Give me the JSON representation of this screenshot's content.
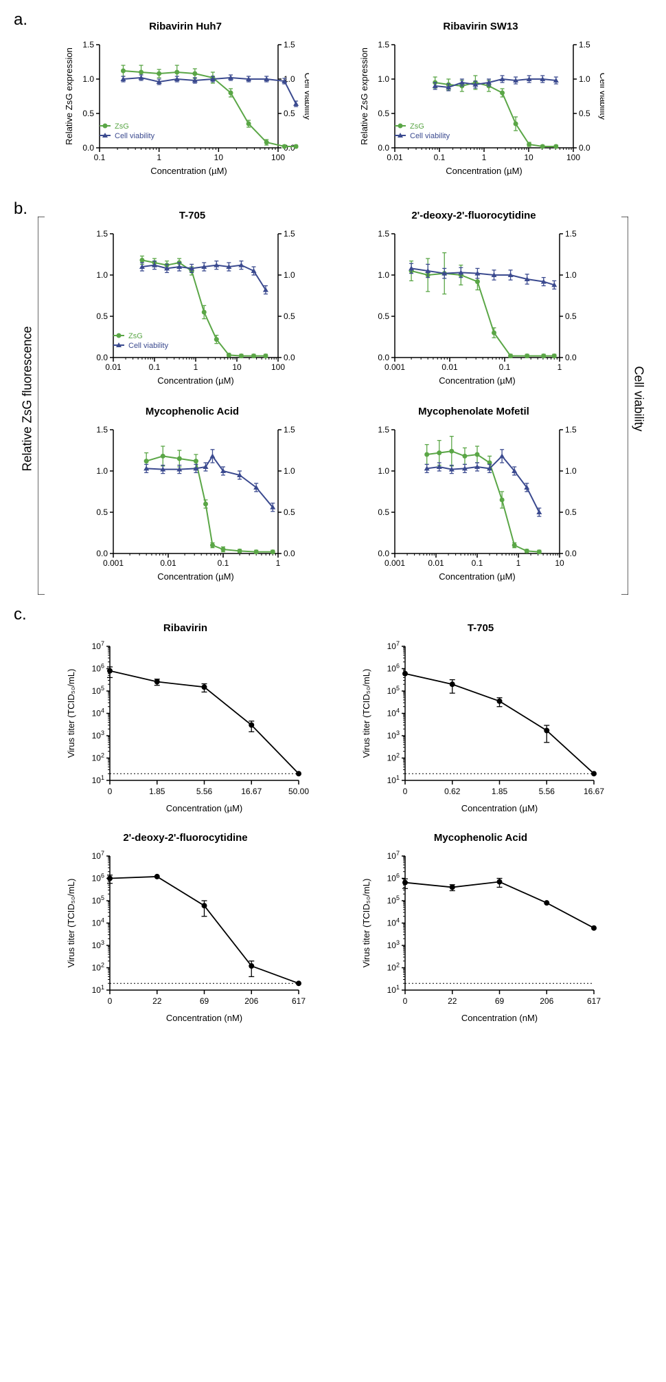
{
  "colors": {
    "zsg": "#5aa646",
    "viability": "#3b4a8f",
    "axis": "#000000",
    "bg": "#ffffff",
    "titer": "#000000",
    "dotted": "#000000"
  },
  "panelA": {
    "label": "a.",
    "charts": [
      {
        "title": "Ribavirin Huh7",
        "xlabel": "Concentration (µM)",
        "ylabel_left": "Relative ZsG expression",
        "ylabel_right": "Cell viability",
        "xlog": true,
        "x_ticks": [
          0.1,
          1,
          10,
          100
        ],
        "x_tick_labels": [
          "0.1",
          "1",
          "10",
          "100"
        ],
        "y_ticks": [
          0.0,
          0.5,
          1.0,
          1.5
        ],
        "show_legend": true,
        "legend": {
          "zsg": "ZsG",
          "viability": "Cell viability"
        },
        "zsg": {
          "x": [
            0.25,
            0.5,
            1,
            2,
            4,
            8,
            16,
            32,
            64,
            128,
            200
          ],
          "y": [
            1.12,
            1.1,
            1.08,
            1.1,
            1.08,
            1.02,
            0.8,
            0.35,
            0.08,
            0.02,
            0.02
          ],
          "err": [
            0.08,
            0.1,
            0.06,
            0.1,
            0.07,
            0.08,
            0.06,
            0.05,
            0.04,
            0.02,
            0.02
          ]
        },
        "viability": {
          "x": [
            0.25,
            0.5,
            1,
            2,
            4,
            8,
            16,
            32,
            64,
            128,
            200
          ],
          "y": [
            1.0,
            1.02,
            0.96,
            1.0,
            0.98,
            1.0,
            1.02,
            1.0,
            1.0,
            0.97,
            0.64
          ],
          "err": [
            0.04,
            0.04,
            0.04,
            0.04,
            0.04,
            0.04,
            0.04,
            0.04,
            0.04,
            0.04,
            0.04
          ]
        }
      },
      {
        "title": "Ribavirin SW13",
        "xlabel": "Concentration (µM)",
        "ylabel_left": "Relative ZsG expression",
        "ylabel_right": "Cell viability",
        "xlog": true,
        "x_ticks": [
          0.01,
          0.1,
          1,
          10,
          100
        ],
        "x_tick_labels": [
          "0.01",
          "0.1",
          "1",
          "10",
          "100"
        ],
        "y_ticks": [
          0.0,
          0.5,
          1.0,
          1.5
        ],
        "show_legend": true,
        "legend": {
          "zsg": "ZsG",
          "viability": "Cell viability"
        },
        "zsg": {
          "x": [
            0.08,
            0.16,
            0.32,
            0.64,
            1.28,
            2.56,
            5.12,
            10.24,
            20.48,
            40.96
          ],
          "y": [
            0.95,
            0.92,
            0.9,
            0.95,
            0.9,
            0.8,
            0.35,
            0.05,
            0.02,
            0.02
          ],
          "err": [
            0.08,
            0.08,
            0.08,
            0.1,
            0.08,
            0.06,
            0.1,
            0.03,
            0.02,
            0.02
          ]
        },
        "viability": {
          "x": [
            0.08,
            0.16,
            0.32,
            0.64,
            1.28,
            2.56,
            5.12,
            10.24,
            20.48,
            40.96
          ],
          "y": [
            0.9,
            0.88,
            0.95,
            0.92,
            0.95,
            1.0,
            0.98,
            1.0,
            1.0,
            0.98
          ],
          "err": [
            0.05,
            0.05,
            0.05,
            0.05,
            0.05,
            0.05,
            0.05,
            0.05,
            0.05,
            0.05
          ]
        }
      }
    ]
  },
  "panelB": {
    "label": "b.",
    "group_ylabel_left": "Relative ZsG fluorescence",
    "group_ylabel_right": "Cell viability",
    "charts": [
      {
        "title": "T-705",
        "xlabel": "Concentration (µM)",
        "xlog": true,
        "x_ticks": [
          0.01,
          0.1,
          1,
          10,
          100
        ],
        "x_tick_labels": [
          "0.01",
          "0.1",
          "1",
          "10",
          "100"
        ],
        "y_ticks": [
          0.0,
          0.5,
          1.0,
          1.5
        ],
        "show_legend": true,
        "legend": {
          "zsg": "ZsG",
          "viability": "Cell viability"
        },
        "zsg": {
          "x": [
            0.05,
            0.1,
            0.2,
            0.4,
            0.8,
            1.6,
            3.2,
            6.4,
            12.8,
            25.6,
            50
          ],
          "y": [
            1.18,
            1.15,
            1.12,
            1.15,
            1.05,
            0.55,
            0.22,
            0.03,
            0.02,
            0.02,
            0.02
          ],
          "err": [
            0.05,
            0.05,
            0.05,
            0.05,
            0.05,
            0.08,
            0.05,
            0.02,
            0.02,
            0.02,
            0.02
          ]
        },
        "viability": {
          "x": [
            0.05,
            0.1,
            0.2,
            0.4,
            0.8,
            1.6,
            3.2,
            6.4,
            12.8,
            25.6,
            50
          ],
          "y": [
            1.1,
            1.12,
            1.08,
            1.1,
            1.08,
            1.1,
            1.12,
            1.1,
            1.12,
            1.05,
            0.82
          ],
          "err": [
            0.05,
            0.05,
            0.05,
            0.05,
            0.05,
            0.05,
            0.05,
            0.05,
            0.05,
            0.05,
            0.05
          ]
        }
      },
      {
        "title": "2'-deoxy-2'-fluorocytidine",
        "xlabel": "Concentration (µM)",
        "xlog": true,
        "x_ticks": [
          0.001,
          0.01,
          0.1,
          1
        ],
        "x_tick_labels": [
          "0.001",
          "0.01",
          "0.1",
          "1"
        ],
        "y_ticks": [
          0.0,
          0.5,
          1.0,
          1.5
        ],
        "show_legend": false,
        "zsg": {
          "x": [
            0.002,
            0.004,
            0.008,
            0.016,
            0.032,
            0.064,
            0.128,
            0.256,
            0.512,
            0.8
          ],
          "y": [
            1.05,
            1.0,
            1.02,
            1.0,
            0.92,
            0.3,
            0.02,
            0.02,
            0.02,
            0.02
          ],
          "err": [
            0.12,
            0.2,
            0.25,
            0.12,
            0.1,
            0.06,
            0.02,
            0.02,
            0.02,
            0.02
          ]
        },
        "viability": {
          "x": [
            0.002,
            0.004,
            0.008,
            0.016,
            0.032,
            0.064,
            0.128,
            0.256,
            0.512,
            0.8
          ],
          "y": [
            1.08,
            1.05,
            1.02,
            1.03,
            1.02,
            1.0,
            1.0,
            0.95,
            0.92,
            0.88
          ],
          "err": [
            0.06,
            0.08,
            0.06,
            0.06,
            0.06,
            0.06,
            0.06,
            0.06,
            0.05,
            0.05
          ]
        }
      },
      {
        "title": "Mycophenolic Acid",
        "xlabel": "Concentration (µM)",
        "xlog": true,
        "x_ticks": [
          0.001,
          0.01,
          0.1,
          1
        ],
        "x_tick_labels": [
          "0.001",
          "0.01",
          "0.1",
          "1"
        ],
        "y_ticks": [
          0.0,
          0.5,
          1.0,
          1.5
        ],
        "show_legend": false,
        "zsg": {
          "x": [
            0.004,
            0.008,
            0.016,
            0.032,
            0.048,
            0.064,
            0.1,
            0.2,
            0.4,
            0.8
          ],
          "y": [
            1.12,
            1.18,
            1.15,
            1.12,
            0.6,
            0.1,
            0.05,
            0.03,
            0.02,
            0.02
          ],
          "err": [
            0.1,
            0.12,
            0.1,
            0.08,
            0.05,
            0.03,
            0.03,
            0.02,
            0.02,
            0.02
          ]
        },
        "viability": {
          "x": [
            0.004,
            0.008,
            0.016,
            0.032,
            0.048,
            0.064,
            0.1,
            0.2,
            0.4,
            0.8
          ],
          "y": [
            1.03,
            1.02,
            1.02,
            1.03,
            1.05,
            1.18,
            1.0,
            0.95,
            0.8,
            0.56
          ],
          "err": [
            0.05,
            0.05,
            0.05,
            0.05,
            0.05,
            0.08,
            0.05,
            0.05,
            0.05,
            0.05
          ]
        }
      },
      {
        "title": "Mycophenolate Mofetil",
        "xlabel": "Concentration (µM)",
        "xlog": true,
        "x_ticks": [
          0.001,
          0.01,
          0.1,
          1,
          10
        ],
        "x_tick_labels": [
          "0.001",
          "0.01",
          "0.1",
          "1",
          "10"
        ],
        "y_ticks": [
          0.0,
          0.5,
          1.0,
          1.5
        ],
        "show_legend": false,
        "zsg": {
          "x": [
            0.006,
            0.012,
            0.024,
            0.05,
            0.1,
            0.2,
            0.4,
            0.8,
            1.6,
            3.2
          ],
          "y": [
            1.2,
            1.22,
            1.24,
            1.18,
            1.2,
            1.1,
            0.65,
            0.1,
            0.03,
            0.02
          ],
          "err": [
            0.12,
            0.15,
            0.18,
            0.1,
            0.1,
            0.08,
            0.1,
            0.03,
            0.02,
            0.02
          ]
        },
        "viability": {
          "x": [
            0.006,
            0.012,
            0.024,
            0.05,
            0.1,
            0.2,
            0.4,
            0.8,
            1.6,
            3.2
          ],
          "y": [
            1.03,
            1.05,
            1.02,
            1.03,
            1.05,
            1.03,
            1.18,
            1.0,
            0.8,
            0.5
          ],
          "err": [
            0.05,
            0.05,
            0.05,
            0.05,
            0.05,
            0.05,
            0.08,
            0.05,
            0.05,
            0.05
          ]
        }
      }
    ]
  },
  "panelC": {
    "label": "c.",
    "charts": [
      {
        "title": "Ribavirin",
        "xlabel": "Concentration (µM)",
        "ylabel": "Virus titer (TCID₅₀/mL)",
        "x_categories": [
          "0",
          "1.85",
          "5.56",
          "16.67",
          "50.00"
        ],
        "y_log_ticks": [
          1,
          2,
          3,
          4,
          5,
          6,
          7
        ],
        "lod": 1.3,
        "series": {
          "y": [
            800000,
            260000,
            150000,
            3000,
            20
          ],
          "err": [
            400000,
            80000,
            60000,
            1500,
            0
          ]
        }
      },
      {
        "title": "T-705",
        "xlabel": "Concentration (µM)",
        "ylabel": "Virus titer (TCID₅₀/mL)",
        "x_categories": [
          "0",
          "0.62",
          "1.85",
          "5.56",
          "16.67"
        ],
        "y_log_ticks": [
          1,
          2,
          3,
          4,
          5,
          6,
          7
        ],
        "lod": 1.3,
        "series": {
          "y": [
            600000,
            200000,
            35000,
            1700,
            20
          ],
          "err": [
            0,
            120000,
            15000,
            1200,
            0
          ]
        }
      },
      {
        "title": "2'-deoxy-2'-fluorocytidine",
        "xlabel": "Concentration (nM)",
        "ylabel": "Virus titer (TCID₅₀/mL)",
        "x_categories": [
          "0",
          "22",
          "69",
          "206",
          "617"
        ],
        "y_log_ticks": [
          1,
          2,
          3,
          4,
          5,
          6,
          7
        ],
        "lod": 1.3,
        "series": {
          "y": [
            1000000,
            1200000,
            60000,
            120,
            20
          ],
          "err": [
            400000,
            0,
            40000,
            80,
            0
          ]
        }
      },
      {
        "title": "Mycophenolic Acid",
        "xlabel": "Concentration (nM)",
        "ylabel": "Virus titer (TCID₅₀/mL)",
        "x_categories": [
          "0",
          "22",
          "69",
          "206",
          "617"
        ],
        "y_log_ticks": [
          1,
          2,
          3,
          4,
          5,
          6,
          7
        ],
        "lod": 1.3,
        "series": {
          "y": [
            650000,
            400000,
            700000,
            80000,
            6000
          ],
          "err": [
            300000,
            120000,
            300000,
            0,
            0
          ]
        }
      }
    ]
  }
}
